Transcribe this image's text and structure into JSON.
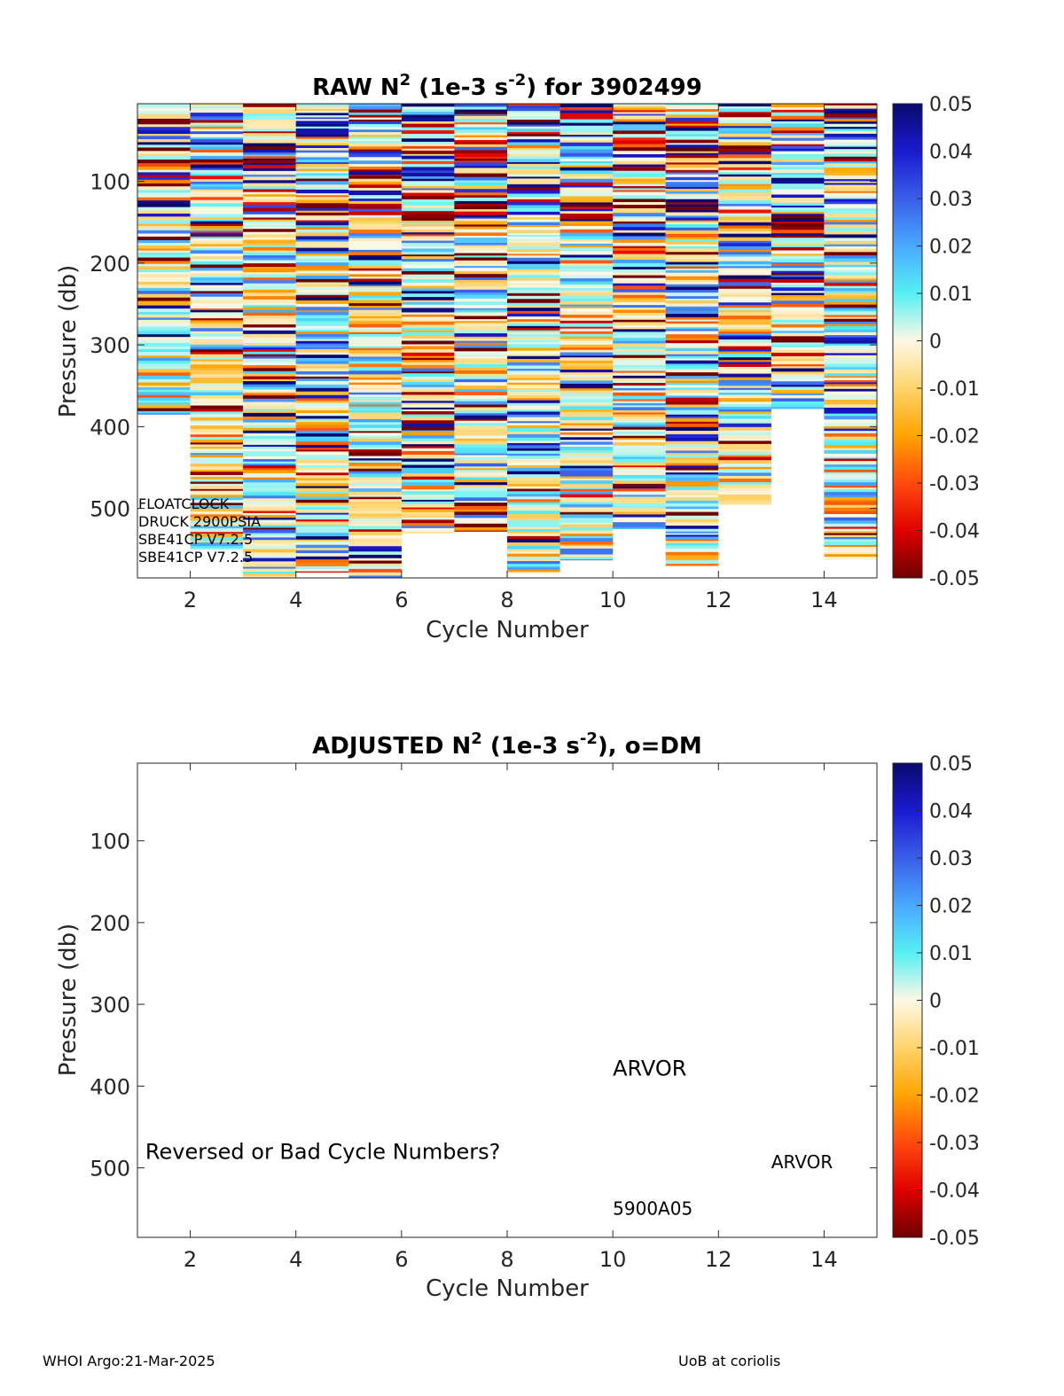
{
  "footer": {
    "left": "WHOI Argo:21-Mar-2025",
    "right": "UoB at coriolis"
  },
  "chart_data": [
    {
      "type": "heatmap",
      "title": {
        "prefix": "RAW N",
        "sup1": "2",
        "mid": " (1e-3 s",
        "sup2": "-2",
        "suffix": ") for 3902499"
      },
      "xlabel": "Cycle Number",
      "ylabel": "Pressure (db)",
      "xlim": [
        1,
        15
      ],
      "ylim": [
        585,
        5
      ],
      "xticks": [
        2,
        4,
        6,
        8,
        10,
        12,
        14
      ],
      "yticks": [
        100,
        200,
        300,
        400,
        500
      ],
      "colorbar": {
        "min": -0.05,
        "max": 0.05,
        "ticks": [
          "0.05",
          "0.04",
          "0.03",
          "0.02",
          "0.01",
          "0",
          "-0.01",
          "-0.02",
          "-0.03",
          "-0.04",
          "-0.05"
        ]
      },
      "cycles": [
        1,
        2,
        3,
        4,
        5,
        6,
        7,
        8,
        9,
        10,
        11,
        12,
        13,
        14
      ],
      "max_pressure": [
        385,
        550,
        585,
        578,
        585,
        530,
        528,
        580,
        563,
        525,
        570,
        495,
        378,
        562
      ],
      "annotations": [
        "FLOATCLOCK",
        "DRUCK 2900PSIA",
        "SBE41CP V7.2.5",
        "SBE41CP V7.2.5"
      ]
    },
    {
      "type": "heatmap",
      "title": {
        "prefix": "ADJUSTED N",
        "sup1": "2",
        "mid": " (1e-3 s",
        "sup2": "-2",
        "suffix": "), o=DM"
      },
      "xlabel": "Cycle Number",
      "ylabel": "Pressure (db)",
      "xlim": [
        1,
        15
      ],
      "ylim": [
        585,
        5
      ],
      "xticks": [
        2,
        4,
        6,
        8,
        10,
        12,
        14
      ],
      "yticks": [
        100,
        200,
        300,
        400,
        500
      ],
      "colorbar": {
        "min": -0.05,
        "max": 0.05,
        "ticks": [
          "0.05",
          "0.04",
          "0.03",
          "0.02",
          "0.01",
          "0",
          "-0.01",
          "-0.02",
          "-0.03",
          "-0.04",
          "-0.05"
        ]
      },
      "annotations": [
        {
          "text": "ARVOR",
          "x": 10,
          "y": 378,
          "size": "large"
        },
        {
          "text": "Reversed or Bad Cycle Numbers?",
          "x": 1.15,
          "y": 480,
          "size": "large"
        },
        {
          "text": "ARVOR",
          "x": 13,
          "y": 493,
          "size": "medium"
        },
        {
          "text": "5900A05",
          "x": 10,
          "y": 550,
          "size": "medium"
        }
      ]
    }
  ]
}
